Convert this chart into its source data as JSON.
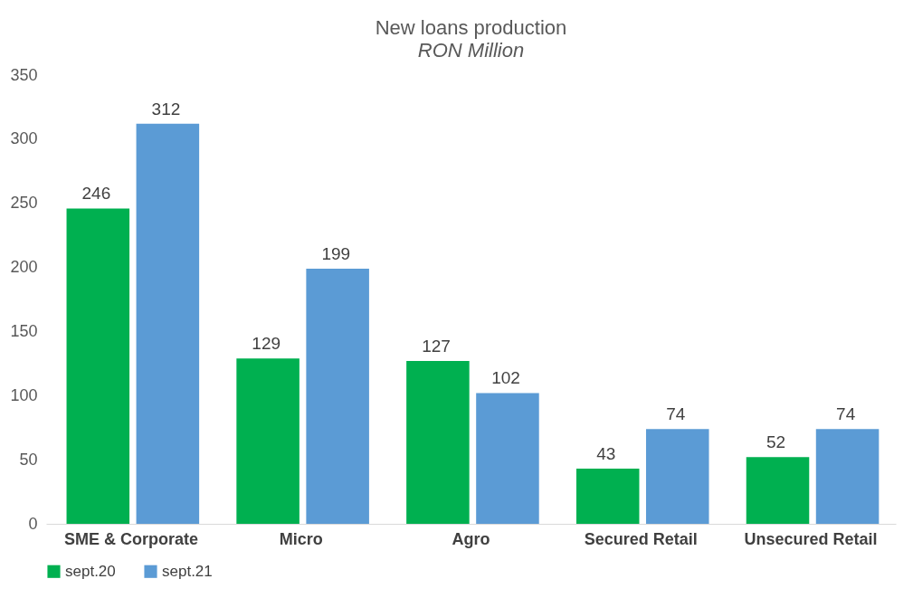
{
  "chart_data": {
    "type": "bar",
    "title": "New loans production",
    "subtitle": "RON Million",
    "categories": [
      "SME & Corporate",
      "Micro",
      "Agro",
      "Secured Retail",
      "Unsecured Retail"
    ],
    "series": [
      {
        "name": "sept.20",
        "color": "#00b050",
        "values": [
          246,
          129,
          127,
          43,
          52
        ]
      },
      {
        "name": "sept.21",
        "color": "#5b9bd5",
        "values": [
          312,
          199,
          102,
          74,
          74
        ]
      }
    ],
    "ylim": [
      0,
      350
    ],
    "yticks": [
      0,
      50,
      100,
      150,
      200,
      250,
      300,
      350
    ],
    "data_labels": true,
    "legend": "bottom",
    "grid": false
  }
}
